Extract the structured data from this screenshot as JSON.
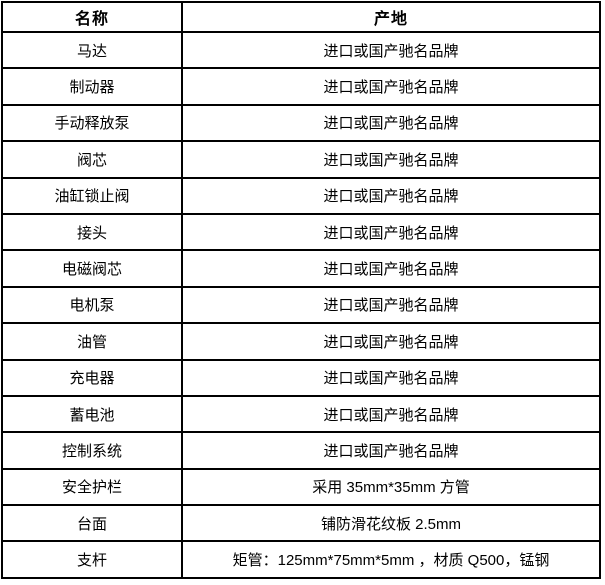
{
  "colors": {
    "background": "#ffffff",
    "border": "#000000",
    "text": "#000000"
  },
  "table": {
    "header": {
      "name_col": "名称",
      "origin_col": "产地"
    },
    "rows": [
      {
        "name": "马达",
        "origin": "进口或国产驰名品牌"
      },
      {
        "name": "制动器",
        "origin": "进口或国产驰名品牌"
      },
      {
        "name": "手动释放泵",
        "origin": "进口或国产驰名品牌"
      },
      {
        "name": "阀芯",
        "origin": "进口或国产驰名品牌"
      },
      {
        "name": "油缸锁止阀",
        "origin": "进口或国产驰名品牌"
      },
      {
        "name": "接头",
        "origin": "进口或国产驰名品牌"
      },
      {
        "name": "电磁阀芯",
        "origin": "进口或国产驰名品牌"
      },
      {
        "name": "电机泵",
        "origin": "进口或国产驰名品牌"
      },
      {
        "name": "油管",
        "origin": "进口或国产驰名品牌"
      },
      {
        "name": "充电器",
        "origin": "进口或国产驰名品牌"
      },
      {
        "name": "蓄电池",
        "origin": "进口或国产驰名品牌"
      },
      {
        "name": "控制系统",
        "origin": "进口或国产驰名品牌"
      },
      {
        "name": "安全护栏",
        "origin": "采用 35mm*35mm 方管"
      },
      {
        "name": "台面",
        "origin": "铺防滑花纹板 2.5mm"
      },
      {
        "name": "支杆",
        "origin": "矩管：125mm*75mm*5mm ，材质 Q500，锰钢"
      }
    ]
  }
}
